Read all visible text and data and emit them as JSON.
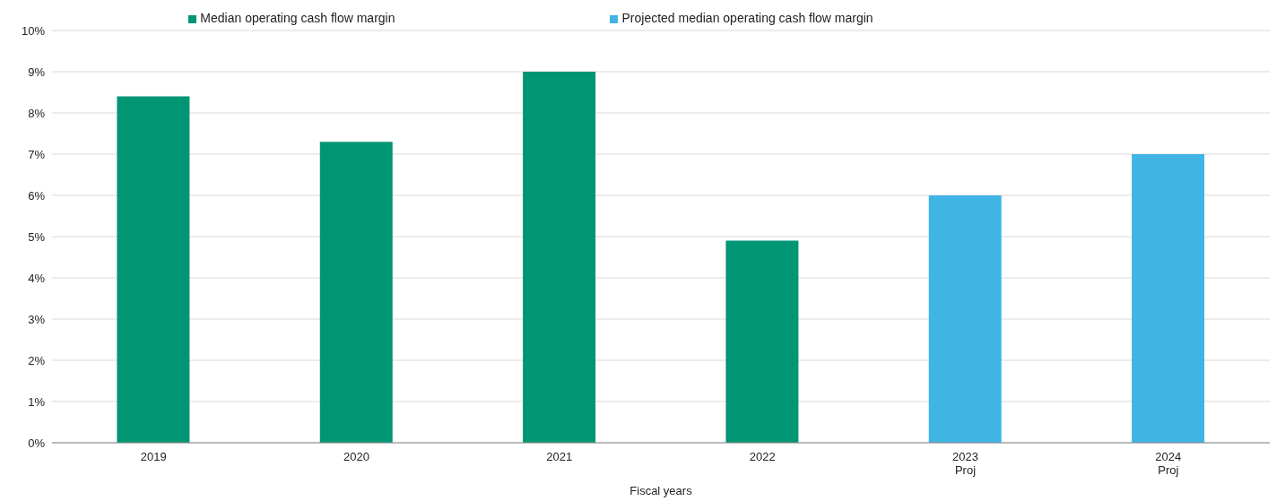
{
  "chart_data": {
    "type": "bar",
    "xlabel": "Fiscal years",
    "stacked": true,
    "categories": [
      "2019",
      "2020",
      "2021",
      "2022",
      "2023\nProj",
      "2024\nProj"
    ],
    "series": [
      {
        "name": "Median operating cash flow margin",
        "color": "#009673",
        "values": [
          8.4,
          7.3,
          9.0,
          4.9,
          null,
          null
        ]
      },
      {
        "name": "Projected median operating cash flow margin",
        "color": "#41b4e6",
        "values": [
          null,
          null,
          null,
          null,
          6.0,
          7.0
        ]
      }
    ],
    "ylim": [
      0,
      10
    ],
    "yticks": [
      {
        "value": 0,
        "label": "0%"
      },
      {
        "value": 1,
        "label": "1%"
      },
      {
        "value": 2,
        "label": "2%"
      },
      {
        "value": 3,
        "label": "3%"
      },
      {
        "value": 4,
        "label": "4%"
      },
      {
        "value": 5,
        "label": "5%"
      },
      {
        "value": 6,
        "label": "6%"
      },
      {
        "value": 7,
        "label": "7%"
      },
      {
        "value": 8,
        "label": "8%"
      },
      {
        "value": 9,
        "label": "9%"
      },
      {
        "value": 10,
        "label": "10%"
      }
    ],
    "grid": "y",
    "legend": "top"
  }
}
